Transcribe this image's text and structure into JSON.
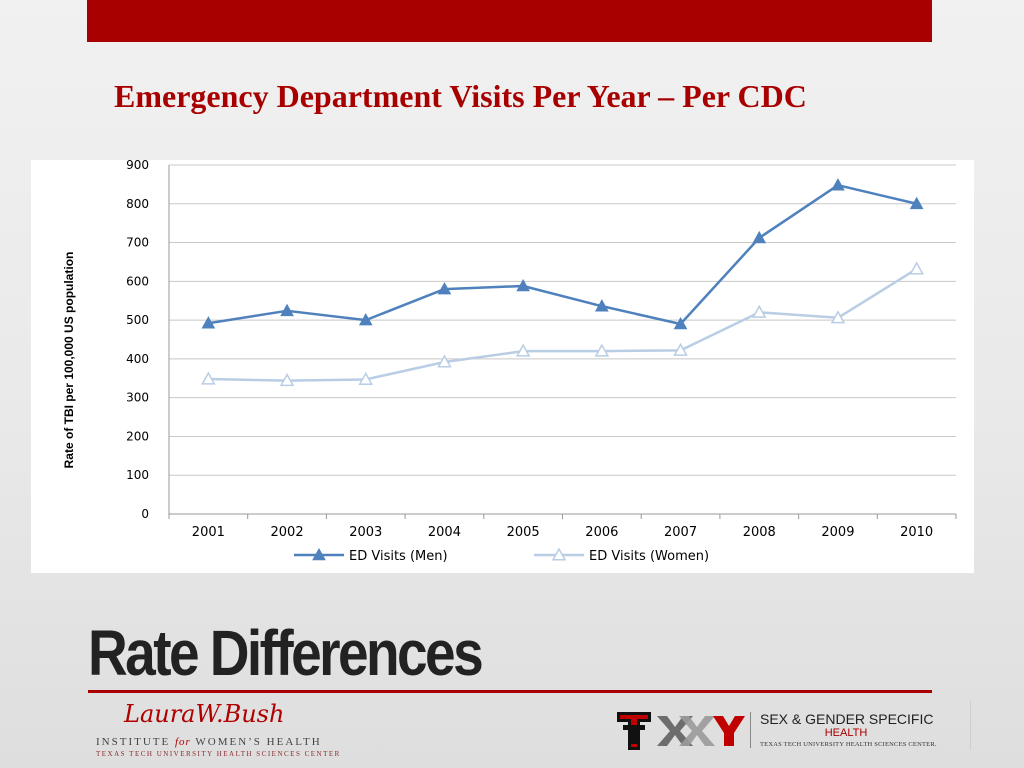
{
  "slide": {
    "title": "Emergency Department Visits Per Year – Per CDC",
    "heading": "Rate Differences",
    "colors": {
      "accent_red": "#a80000",
      "men_series": "#4f81bd",
      "women_series": "#b9cde5"
    }
  },
  "chart_data": {
    "type": "line",
    "categories": [
      "2001",
      "2002",
      "2003",
      "2004",
      "2005",
      "2006",
      "2007",
      "2008",
      "2009",
      "2010"
    ],
    "series": [
      {
        "name": "ED Visits (Men)",
        "color": "#4f81bd",
        "marker": "filled-triangle",
        "values": [
          492,
          524,
          500,
          580,
          588,
          536,
          490,
          712,
          848,
          800
        ]
      },
      {
        "name": "ED Visits (Women)",
        "color": "#b9cde5",
        "marker": "hollow-triangle",
        "values": [
          348,
          344,
          347,
          392,
          420,
          420,
          422,
          520,
          506,
          632
        ]
      }
    ],
    "ylabel": "Rate of TBI per 100,000 US population",
    "xlabel": "",
    "ylim": [
      0,
      900
    ],
    "yticks": [
      0,
      100,
      200,
      300,
      400,
      500,
      600,
      700,
      800,
      900
    ],
    "grid": "horizontal",
    "legend": "bottom"
  },
  "footer": {
    "left_logo": {
      "script": "LauraW.Bush",
      "line1_a": "INSTITUTE",
      "line1_for": "for",
      "line1_b": "WOMEN’S HEALTH",
      "line2": "TEXAS TECH UNIVERSITY HEALTH SCIENCES CENTER"
    },
    "right_logo": {
      "mark": "XXY",
      "line1": "SEX & GENDER SPECIFIC",
      "line2": "HEALTH",
      "line3": "TEXAS TECH UNIVERSITY HEALTH SCIENCES CENTER."
    }
  }
}
